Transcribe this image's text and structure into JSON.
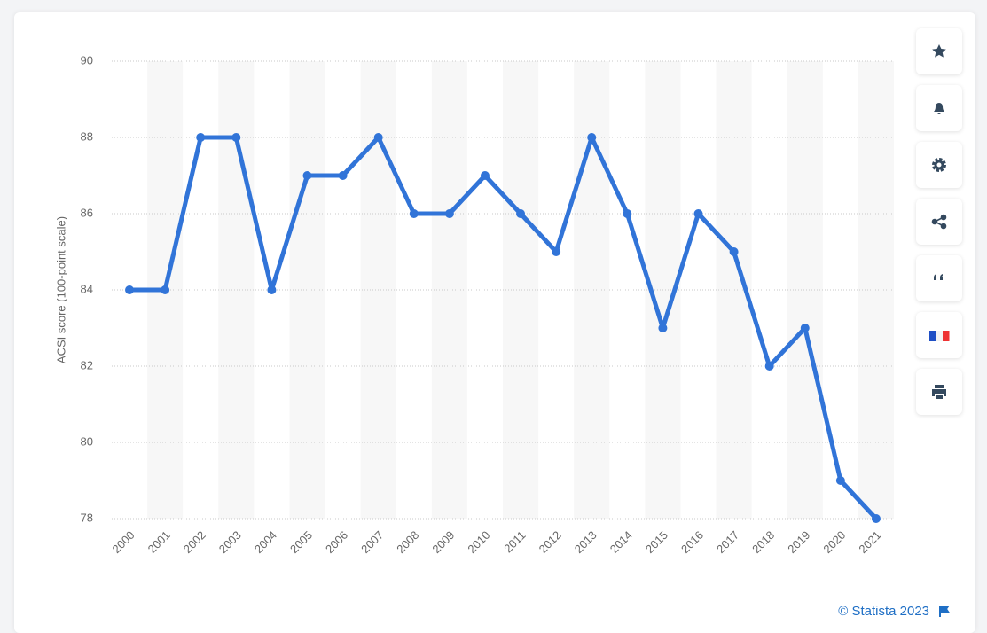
{
  "chart_data": {
    "type": "line",
    "y_label": "ACSI score (100-point scale)",
    "categories": [
      "2000",
      "2001",
      "2002",
      "2003",
      "2004",
      "2005",
      "2006",
      "2007",
      "2008",
      "2009",
      "2010",
      "2011",
      "2012",
      "2013",
      "2014",
      "2015",
      "2016",
      "2017",
      "2018",
      "2019",
      "2020",
      "2021"
    ],
    "values": [
      84,
      84,
      88,
      88,
      84,
      87,
      87,
      88,
      86,
      86,
      87,
      86,
      85,
      88,
      86,
      83,
      86,
      85,
      82,
      83,
      79,
      78
    ],
    "color": "#3174d8",
    "ylim": [
      78,
      90
    ],
    "yticks": [
      78,
      80,
      82,
      84,
      86,
      88,
      90
    ],
    "grid": true,
    "source": "© Statista 2023"
  }
}
